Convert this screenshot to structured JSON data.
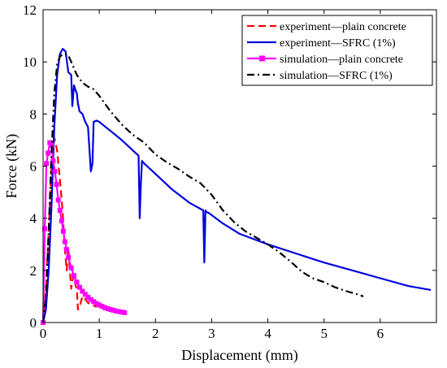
{
  "chart_data": {
    "type": "line",
    "xlabel": "Displacement (mm)",
    "ylabel": "Force (kN)",
    "xlim": [
      0,
      7
    ],
    "ylim": [
      0,
      12
    ],
    "xticks": [
      "0",
      "1",
      "2",
      "3",
      "4",
      "5",
      "6"
    ],
    "yticks": [
      "0",
      "2",
      "4",
      "6",
      "8",
      "10",
      "12"
    ],
    "grid": false,
    "legend_position": "top-right",
    "series": [
      {
        "name": "experiment—plain concrete",
        "color": "#ff0000",
        "style": "dashed",
        "x": [
          0.0,
          0.05,
          0.1,
          0.15,
          0.2,
          0.25,
          0.3,
          0.35,
          0.38,
          0.4,
          0.42,
          0.45,
          0.5,
          0.52,
          0.55,
          0.58,
          0.6,
          0.62,
          0.65,
          0.7,
          0.75,
          0.8,
          0.85,
          0.9,
          0.95
        ],
        "y": [
          0.0,
          1.2,
          3.5,
          6.0,
          7.1,
          6.6,
          5.5,
          4.2,
          3.0,
          2.5,
          2.0,
          2.8,
          1.3,
          1.6,
          1.8,
          1.4,
          1.3,
          0.5,
          0.6,
          1.0,
          0.9,
          0.75,
          0.7,
          0.65,
          0.6
        ]
      },
      {
        "name": "experiment—SFRC (1%)",
        "color": "#0000e0",
        "style": "solid",
        "x": [
          0.0,
          0.05,
          0.1,
          0.15,
          0.2,
          0.25,
          0.3,
          0.35,
          0.4,
          0.45,
          0.5,
          0.52,
          0.55,
          0.58,
          0.6,
          0.62,
          0.65,
          0.7,
          0.75,
          0.8,
          0.85,
          0.88,
          0.9,
          0.95,
          1.0,
          1.2,
          1.4,
          1.6,
          1.7,
          1.72,
          1.74,
          1.76,
          1.8,
          2.0,
          2.3,
          2.6,
          2.85,
          2.87,
          2.89,
          2.9,
          2.95,
          3.2,
          3.5,
          4.0,
          4.5,
          5.0,
          5.5,
          6.0,
          6.5,
          6.9
        ],
        "y": [
          0.0,
          0.5,
          2.0,
          4.5,
          7.5,
          9.5,
          10.3,
          10.5,
          10.4,
          9.6,
          9.5,
          8.3,
          9.1,
          8.9,
          8.8,
          8.4,
          8.1,
          8.0,
          7.7,
          7.5,
          5.8,
          6.1,
          7.7,
          7.75,
          7.7,
          7.35,
          7.0,
          6.6,
          6.4,
          4.0,
          5.3,
          6.2,
          6.1,
          5.7,
          5.1,
          4.6,
          4.3,
          2.3,
          4.3,
          4.25,
          4.2,
          3.8,
          3.4,
          3.0,
          2.65,
          2.3,
          2.0,
          1.7,
          1.4,
          1.25
        ]
      },
      {
        "name": "simulation—plain concrete",
        "color": "#ff00ff",
        "style": "solid-square-markers",
        "x": [
          0.0,
          0.03,
          0.06,
          0.09,
          0.12,
          0.15,
          0.18,
          0.21,
          0.24,
          0.27,
          0.3,
          0.33,
          0.36,
          0.39,
          0.42,
          0.45,
          0.5,
          0.55,
          0.6,
          0.65,
          0.7,
          0.75,
          0.8,
          0.85,
          0.9,
          0.95,
          1.0,
          1.05,
          1.1,
          1.15,
          1.2,
          1.25,
          1.3,
          1.35,
          1.4,
          1.45
        ],
        "y": [
          0.0,
          3.6,
          6.1,
          6.5,
          6.9,
          6.8,
          6.2,
          5.8,
          5.3,
          4.7,
          4.3,
          3.9,
          3.5,
          3.1,
          2.8,
          2.5,
          2.1,
          1.8,
          1.55,
          1.35,
          1.2,
          1.08,
          0.97,
          0.88,
          0.8,
          0.73,
          0.67,
          0.62,
          0.57,
          0.53,
          0.5,
          0.47,
          0.44,
          0.42,
          0.4,
          0.38
        ]
      },
      {
        "name": "simulation—SFRC (1%)",
        "color": "#000000",
        "style": "dash-dot",
        "x": [
          0.0,
          0.05,
          0.1,
          0.15,
          0.2,
          0.25,
          0.3,
          0.35,
          0.4,
          0.45,
          0.5,
          0.6,
          0.7,
          0.8,
          0.9,
          1.0,
          1.2,
          1.4,
          1.6,
          1.8,
          2.0,
          2.2,
          2.4,
          2.6,
          2.8,
          3.0,
          3.2,
          3.4,
          3.6,
          3.8,
          4.0,
          4.2,
          4.4,
          4.6,
          4.8,
          5.0,
          5.2,
          5.4,
          5.6,
          5.7
        ],
        "y": [
          0.0,
          1.0,
          3.5,
          6.5,
          8.8,
          9.9,
          10.2,
          10.3,
          10.3,
          10.25,
          10.0,
          9.5,
          9.2,
          9.05,
          8.95,
          8.7,
          8.1,
          7.6,
          7.2,
          6.9,
          6.45,
          6.15,
          5.9,
          5.6,
          5.35,
          4.9,
          4.3,
          3.85,
          3.5,
          3.25,
          3.0,
          2.7,
          2.35,
          1.95,
          1.7,
          1.55,
          1.35,
          1.2,
          1.08,
          1.0
        ]
      }
    ]
  }
}
